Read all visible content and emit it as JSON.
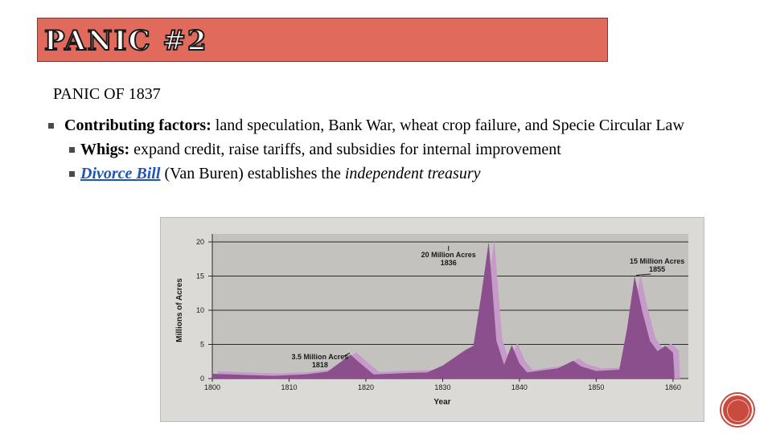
{
  "header": {
    "title": "PANIC #2"
  },
  "subtitle": "PANIC OF 1837",
  "bullets": {
    "b1_label": "Contributing factors:",
    "b1_text": " land speculation, Bank War, wheat crop failure, and Specie Circular Law",
    "b2_label": "Whigs:",
    "b2_text": " expand credit, raise tariffs, and subsidies for internal improvement",
    "b3_link": "Divorce Bill",
    "b3_text": " (Van Buren) establishes the ",
    "b3_italic": "independent treasury"
  },
  "colors": {
    "title_band": "#e06a5c",
    "area_front": "#8b4f8e",
    "area_back": "#c79bc9",
    "plot_bg": "#c4c2be",
    "badge": "#c94b3f"
  },
  "chart_data": {
    "type": "area",
    "title": "",
    "xlabel": "Year",
    "ylabel": "Millions of Acres",
    "xlim": [
      1800,
      1862
    ],
    "ylim": [
      0,
      20
    ],
    "x_ticks": [
      1800,
      1810,
      1820,
      1830,
      1840,
      1850,
      1860
    ],
    "y_ticks": [
      0,
      5,
      10,
      15,
      20
    ],
    "grid": true,
    "series": [
      {
        "values": [
          [
            1800,
            0.7
          ],
          [
            1805,
            0.5
          ],
          [
            1808,
            0.4
          ],
          [
            1812,
            0.6
          ],
          [
            1815,
            1.0
          ],
          [
            1818,
            3.5
          ],
          [
            1819,
            2.5
          ],
          [
            1821,
            0.6
          ],
          [
            1825,
            0.8
          ],
          [
            1828,
            0.9
          ],
          [
            1830,
            1.9
          ],
          [
            1833,
            4.2
          ],
          [
            1834,
            4.8
          ],
          [
            1835,
            12.0
          ],
          [
            1836,
            20.0
          ],
          [
            1837,
            5.5
          ],
          [
            1838,
            2.0
          ],
          [
            1839,
            4.9
          ],
          [
            1840,
            2.2
          ],
          [
            1841,
            0.9
          ],
          [
            1845,
            1.5
          ],
          [
            1847,
            2.6
          ],
          [
            1848,
            1.8
          ],
          [
            1850,
            1.1
          ],
          [
            1853,
            1.3
          ],
          [
            1854,
            7.2
          ],
          [
            1855,
            15.0
          ],
          [
            1856,
            9.8
          ],
          [
            1857,
            5.5
          ],
          [
            1858,
            4.0
          ],
          [
            1859,
            4.8
          ],
          [
            1860,
            3.8
          ],
          [
            1860.2,
            0
          ]
        ]
      }
    ],
    "annotations": [
      {
        "text": "20 Million Acres",
        "year": "1836",
        "x": 1836,
        "y": 20
      },
      {
        "text": "15 Million Acres",
        "year": "1855",
        "x": 1855,
        "y": 15
      },
      {
        "text": "3.5 Million Acres",
        "year": "1818",
        "x": 1818,
        "y": 3.5
      }
    ]
  }
}
